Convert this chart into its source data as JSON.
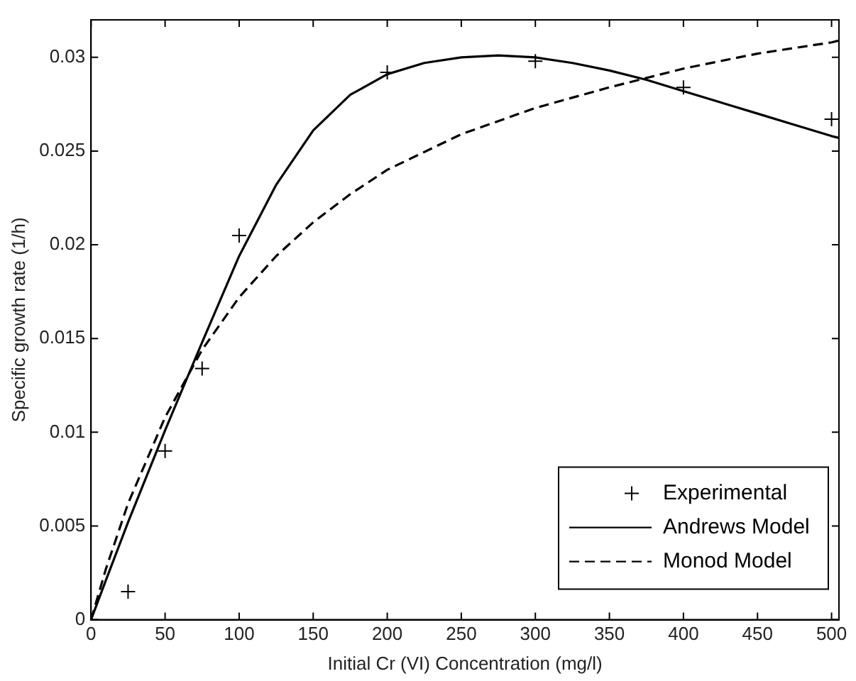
{
  "chart_data": {
    "type": "line",
    "xlabel": "Initial Cr (VI) Concentration (mg/l)",
    "ylabel": "Specific growth rate (1/h)",
    "xlim": [
      0,
      505
    ],
    "xticks": [
      0,
      50,
      100,
      150,
      200,
      250,
      300,
      350,
      400,
      450,
      500
    ],
    "ylim": [
      0,
      0.032
    ],
    "yticks": [
      0,
      0.005,
      0.01,
      0.015,
      0.02,
      0.025,
      0.03
    ],
    "grid": false,
    "legend": "bottom right",
    "series": [
      {
        "name": "Experimental",
        "type": "scatter",
        "marker": "cross",
        "color": "#000000",
        "x": [
          25,
          50,
          75,
          100,
          200,
          300,
          400,
          500
        ],
        "values": [
          0.0015,
          0.009,
          0.0134,
          0.0205,
          0.0292,
          0.0298,
          0.0284,
          0.0267
        ]
      },
      {
        "name": "Andrews Model",
        "marker": "none",
        "line_style": "solid",
        "color": "#000000",
        "x": [
          0,
          10,
          25,
          50,
          75,
          100,
          125,
          150,
          175,
          200,
          225,
          250,
          275,
          300,
          325,
          350,
          375,
          400,
          425,
          450,
          475,
          500,
          505
        ],
        "values": [
          0,
          0.0021,
          0.0052,
          0.0101,
          0.0148,
          0.0194,
          0.0232,
          0.0261,
          0.028,
          0.0291,
          0.0297,
          0.03,
          0.0301,
          0.03,
          0.0297,
          0.0293,
          0.0288,
          0.0282,
          0.0276,
          0.027,
          0.0264,
          0.0258,
          0.0257
        ]
      },
      {
        "name": "Monod Model",
        "marker": "none",
        "line_style": "dashed",
        "color": "#000000",
        "x": [
          0,
          10,
          25,
          50,
          75,
          100,
          125,
          150,
          175,
          200,
          250,
          300,
          350,
          400,
          450,
          500,
          505
        ],
        "values": [
          0,
          0.0027,
          0.0062,
          0.0108,
          0.0144,
          0.0172,
          0.0194,
          0.0212,
          0.0227,
          0.024,
          0.0259,
          0.0273,
          0.0284,
          0.0294,
          0.0302,
          0.0308,
          0.0309
        ]
      }
    ]
  }
}
